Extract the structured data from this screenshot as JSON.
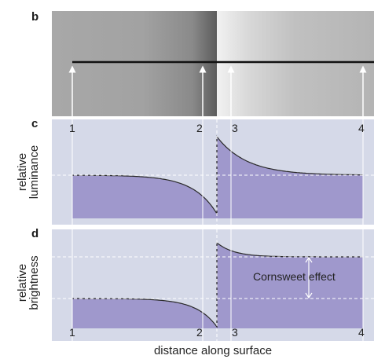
{
  "panels": {
    "b": {
      "letter": "b"
    },
    "c": {
      "letter": "c",
      "ylabel_line1": "relative",
      "ylabel_line2": "luminance",
      "markers": [
        "1",
        "2",
        "3",
        "4"
      ]
    },
    "d": {
      "letter": "d",
      "ylabel_line1": "relative",
      "ylabel_line2": "brightness",
      "markers": [
        "1",
        "2",
        "3",
        "4"
      ],
      "annotation": "Cornsweet effect"
    }
  },
  "xlabel": "distance along surface",
  "colors": {
    "panel_bg": "#d5d9e8",
    "curve_fill": "#9f98cc",
    "curve_stroke": "#2a2a2a",
    "guide_line": "#ffffff",
    "stimulus_left": "#a9a9a9",
    "stimulus_right": "#b3b3b3"
  }
}
